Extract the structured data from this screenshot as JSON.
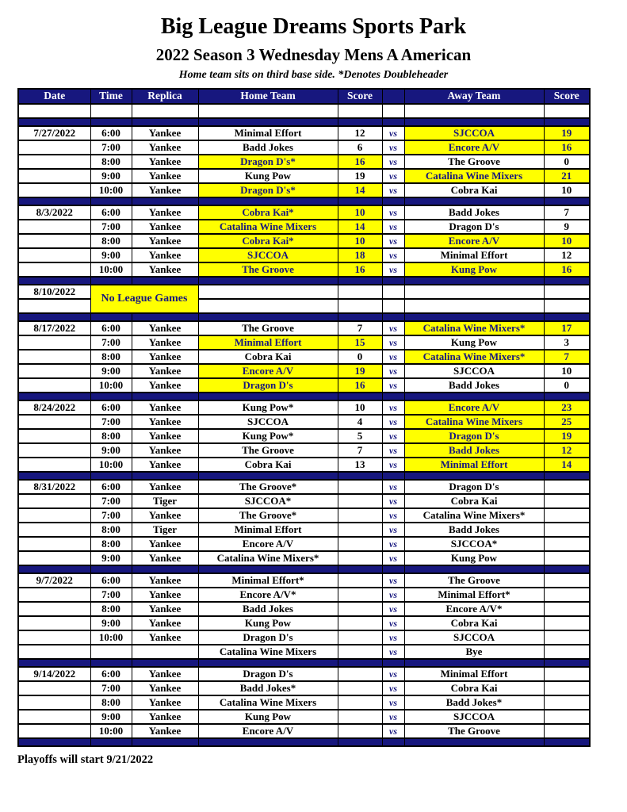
{
  "header": {
    "title": "Big League Dreams Sports Park",
    "subtitle": "2022 Season 3 Wednesday Mens A American",
    "note": "Home team sits on third base side.  *Denotes Doubleheader"
  },
  "footer": {
    "text": "Playoffs will start 9/21/2022"
  },
  "colors": {
    "navy": "#17177E",
    "yellow": "#FFFF00",
    "win_text": "#17177E"
  },
  "table": {
    "headers": [
      "Date",
      "Time",
      "Replica",
      "Home Team",
      "Score",
      "",
      "Away Team",
      "Score"
    ],
    "vs_label": "vs",
    "no_games_label": "No League Games",
    "weeks": [
      {
        "date": "7/27/2022",
        "games": [
          {
            "time": "6:00",
            "replica": "Yankee",
            "home": "Minimal Effort",
            "home_score": "12",
            "home_win": false,
            "away": "SJCCOA",
            "away_score": "19",
            "away_win": true
          },
          {
            "time": "7:00",
            "replica": "Yankee",
            "home": "Badd Jokes",
            "home_score": "6",
            "home_win": false,
            "away": "Encore A/V",
            "away_score": "16",
            "away_win": true
          },
          {
            "time": "8:00",
            "replica": "Yankee",
            "home": "Dragon D's*",
            "home_score": "16",
            "home_win": true,
            "away": "The Groove",
            "away_score": "0",
            "away_win": false
          },
          {
            "time": "9:00",
            "replica": "Yankee",
            "home": "Kung Pow",
            "home_score": "19",
            "home_win": false,
            "away": "Catalina Wine Mixers",
            "away_score": "21",
            "away_win": true
          },
          {
            "time": "10:00",
            "replica": "Yankee",
            "home": "Dragon D's*",
            "home_score": "14",
            "home_win": true,
            "away": "Cobra Kai",
            "away_score": "10",
            "away_win": false
          }
        ]
      },
      {
        "date": "8/3/2022",
        "games": [
          {
            "time": "6:00",
            "replica": "Yankee",
            "home": "Cobra Kai*",
            "home_score": "10",
            "home_win": true,
            "away": "Badd Jokes",
            "away_score": "7",
            "away_win": false
          },
          {
            "time": "7:00",
            "replica": "Yankee",
            "home": "Catalina Wine Mixers",
            "home_score": "14",
            "home_win": true,
            "away": "Dragon D's",
            "away_score": "9",
            "away_win": false
          },
          {
            "time": "8:00",
            "replica": "Yankee",
            "home": "Cobra Kai*",
            "home_score": "10",
            "home_win": true,
            "away": "Encore A/V",
            "away_score": "10",
            "away_win": true
          },
          {
            "time": "9:00",
            "replica": "Yankee",
            "home": "SJCCOA",
            "home_score": "18",
            "home_win": true,
            "away": "Minimal Effort",
            "away_score": "12",
            "away_win": false
          },
          {
            "time": "10:00",
            "replica": "Yankee",
            "home": "The Groove",
            "home_score": "16",
            "home_win": true,
            "away": "Kung Pow",
            "away_score": "16",
            "away_win": true
          }
        ]
      },
      {
        "date": "8/10/2022",
        "no_games": true
      },
      {
        "date": "8/17/2022",
        "games": [
          {
            "time": "6:00",
            "replica": "Yankee",
            "home": "The Groove",
            "home_score": "7",
            "home_win": false,
            "away": "Catalina Wine Mixers*",
            "away_score": "17",
            "away_win": true
          },
          {
            "time": "7:00",
            "replica": "Yankee",
            "home": "Minimal Effort",
            "home_score": "15",
            "home_win": true,
            "away": "Kung Pow",
            "away_score": "3",
            "away_win": false
          },
          {
            "time": "8:00",
            "replica": "Yankee",
            "home": "Cobra Kai",
            "home_score": "0",
            "home_win": false,
            "away": "Catalina Wine Mixers*",
            "away_score": "7",
            "away_win": true
          },
          {
            "time": "9:00",
            "replica": "Yankee",
            "home": "Encore A/V",
            "home_score": "19",
            "home_win": true,
            "away": "SJCCOA",
            "away_score": "10",
            "away_win": false
          },
          {
            "time": "10:00",
            "replica": "Yankee",
            "home": "Dragon D's",
            "home_score": "16",
            "home_win": true,
            "away": "Badd Jokes",
            "away_score": "0",
            "away_win": false
          }
        ]
      },
      {
        "date": "8/24/2022",
        "games": [
          {
            "time": "6:00",
            "replica": "Yankee",
            "home": "Kung Pow*",
            "home_score": "10",
            "home_win": false,
            "away": "Encore A/V",
            "away_score": "23",
            "away_win": true
          },
          {
            "time": "7:00",
            "replica": "Yankee",
            "home": "SJCCOA",
            "home_score": "4",
            "home_win": false,
            "away": "Catalina Wine Mixers",
            "away_score": "25",
            "away_win": true
          },
          {
            "time": "8:00",
            "replica": "Yankee",
            "home": "Kung Pow*",
            "home_score": "5",
            "home_win": false,
            "away": "Dragon D's",
            "away_score": "19",
            "away_win": true
          },
          {
            "time": "9:00",
            "replica": "Yankee",
            "home": "The Groove",
            "home_score": "7",
            "home_win": false,
            "away": "Badd Jokes",
            "away_score": "12",
            "away_win": true
          },
          {
            "time": "10:00",
            "replica": "Yankee",
            "home": "Cobra Kai",
            "home_score": "13",
            "home_win": false,
            "away": "Minimal Effort",
            "away_score": "14",
            "away_win": true
          }
        ]
      },
      {
        "date": "8/31/2022",
        "games": [
          {
            "time": "6:00",
            "replica": "Yankee",
            "home": "The Groove*",
            "home_score": "",
            "home_win": false,
            "away": "Dragon D's",
            "away_score": "",
            "away_win": false
          },
          {
            "time": "7:00",
            "replica": "Tiger",
            "home": "SJCCOA*",
            "home_score": "",
            "home_win": false,
            "away": "Cobra Kai",
            "away_score": "",
            "away_win": false
          },
          {
            "time": "7:00",
            "replica": "Yankee",
            "home": "The Groove*",
            "home_score": "",
            "home_win": false,
            "away": "Catalina Wine Mixers*",
            "away_score": "",
            "away_win": false
          },
          {
            "time": "8:00",
            "replica": "Tiger",
            "home": "Minimal Effort",
            "home_score": "",
            "home_win": false,
            "away": "Badd Jokes",
            "away_score": "",
            "away_win": false
          },
          {
            "time": "8:00",
            "replica": "Yankee",
            "home": "Encore A/V",
            "home_score": "",
            "home_win": false,
            "away": "SJCCOA*",
            "away_score": "",
            "away_win": false
          },
          {
            "time": "9:00",
            "replica": "Yankee",
            "home": "Catalina Wine Mixers*",
            "home_score": "",
            "home_win": false,
            "away": "Kung Pow",
            "away_score": "",
            "away_win": false
          }
        ]
      },
      {
        "date": "9/7/2022",
        "games": [
          {
            "time": "6:00",
            "replica": "Yankee",
            "home": "Minimal Effort*",
            "home_score": "",
            "home_win": false,
            "away": "The Groove",
            "away_score": "",
            "away_win": false
          },
          {
            "time": "7:00",
            "replica": "Yankee",
            "home": "Encore A/V*",
            "home_score": "",
            "home_win": false,
            "away": "Minimal Effort*",
            "away_score": "",
            "away_win": false
          },
          {
            "time": "8:00",
            "replica": "Yankee",
            "home": "Badd Jokes",
            "home_score": "",
            "home_win": false,
            "away": "Encore A/V*",
            "away_score": "",
            "away_win": false
          },
          {
            "time": "9:00",
            "replica": "Yankee",
            "home": "Kung Pow",
            "home_score": "",
            "home_win": false,
            "away": "Cobra Kai",
            "away_score": "",
            "away_win": false
          },
          {
            "time": "10:00",
            "replica": "Yankee",
            "home": "Dragon D's",
            "home_score": "",
            "home_win": false,
            "away": "SJCCOA",
            "away_score": "",
            "away_win": false
          },
          {
            "time": "",
            "replica": "",
            "home": "Catalina Wine Mixers",
            "home_score": "",
            "home_win": false,
            "away": "Bye",
            "away_score": "",
            "away_win": false
          }
        ]
      },
      {
        "date": "9/14/2022",
        "games": [
          {
            "time": "6:00",
            "replica": "Yankee",
            "home": "Dragon D's",
            "home_score": "",
            "home_win": false,
            "away": "Minimal Effort",
            "away_score": "",
            "away_win": false
          },
          {
            "time": "7:00",
            "replica": "Yankee",
            "home": "Badd Jokes*",
            "home_score": "",
            "home_win": false,
            "away": "Cobra Kai",
            "away_score": "",
            "away_win": false
          },
          {
            "time": "8:00",
            "replica": "Yankee",
            "home": "Catalina Wine Mixers",
            "home_score": "",
            "home_win": false,
            "away": "Badd Jokes*",
            "away_score": "",
            "away_win": false
          },
          {
            "time": "9:00",
            "replica": "Yankee",
            "home": "Kung Pow",
            "home_score": "",
            "home_win": false,
            "away": "SJCCOA",
            "away_score": "",
            "away_win": false
          },
          {
            "time": "10:00",
            "replica": "Yankee",
            "home": "Encore A/V",
            "home_score": "",
            "home_win": false,
            "away": "The Groove",
            "away_score": "",
            "away_win": false
          }
        ]
      }
    ]
  }
}
